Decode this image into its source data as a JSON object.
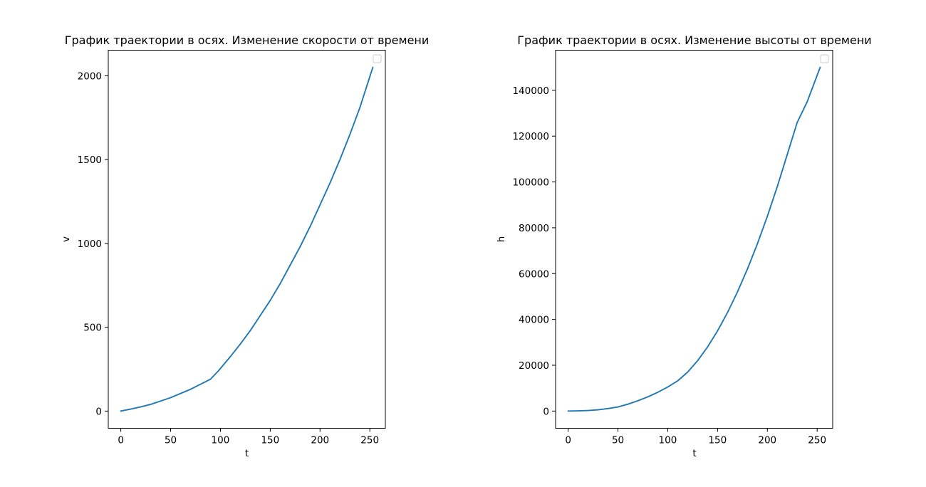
{
  "colors": {
    "series": "#1f77b4",
    "frame": "#000000",
    "legend_border": "#cccccc"
  },
  "chart_data": [
    {
      "type": "line",
      "title": "График траектории в осях. Изменение скорости от времени",
      "xlabel": "t",
      "ylabel": "v",
      "xlim": [
        -12.6,
        265.6
      ],
      "ylim": [
        -102.5,
        2152.5
      ],
      "xticks": [
        0,
        50,
        100,
        150,
        200,
        250
      ],
      "xtick_labels": [
        "0",
        "50",
        "100",
        "150",
        "200",
        "250"
      ],
      "yticks": [
        0,
        500,
        1000,
        1500,
        2000
      ],
      "ytick_labels": [
        "0",
        "500",
        "1000",
        "1500",
        "2000"
      ],
      "grid": false,
      "legend": "upper right, empty",
      "series": [
        {
          "color": "#1f77b4",
          "x": [
            0,
            10,
            20,
            30,
            40,
            50,
            60,
            70,
            80,
            90,
            98,
            110,
            120,
            130,
            140,
            150,
            160,
            170,
            180,
            190,
            200,
            210,
            220,
            230,
            240,
            253
          ],
          "y": [
            0,
            12,
            25,
            40,
            60,
            80,
            105,
            130,
            160,
            190,
            240,
            325,
            400,
            480,
            570,
            660,
            760,
            870,
            980,
            1100,
            1230,
            1360,
            1500,
            1650,
            1810,
            2050
          ]
        }
      ]
    },
    {
      "type": "line",
      "title": "График траектории в осях. Изменение высоты от времени",
      "xlabel": "t",
      "ylabel": "h",
      "xlim": [
        -12.6,
        265.6
      ],
      "ylim": [
        -7500,
        157500
      ],
      "xticks": [
        0,
        50,
        100,
        150,
        200,
        250
      ],
      "xtick_labels": [
        "0",
        "50",
        "100",
        "150",
        "200",
        "250"
      ],
      "yticks": [
        0,
        20000,
        40000,
        60000,
        80000,
        100000,
        120000,
        140000
      ],
      "ytick_labels": [
        "0",
        "20000",
        "40000",
        "60000",
        "80000",
        "100000",
        "120000",
        "140000"
      ],
      "grid": false,
      "legend": "upper right, empty",
      "series": [
        {
          "color": "#1f77b4",
          "x": [
            0,
            10,
            20,
            30,
            40,
            50,
            60,
            70,
            80,
            90,
            100,
            110,
            120,
            130,
            140,
            150,
            160,
            170,
            180,
            190,
            200,
            210,
            220,
            230,
            240,
            253
          ],
          "y": [
            0,
            100,
            250,
            550,
            1100,
            1800,
            3000,
            4500,
            6200,
            8200,
            10500,
            13200,
            17000,
            22000,
            28000,
            35000,
            43000,
            52000,
            62000,
            73000,
            85000,
            98000,
            112000,
            126000,
            135000,
            150000
          ]
        }
      ]
    }
  ]
}
